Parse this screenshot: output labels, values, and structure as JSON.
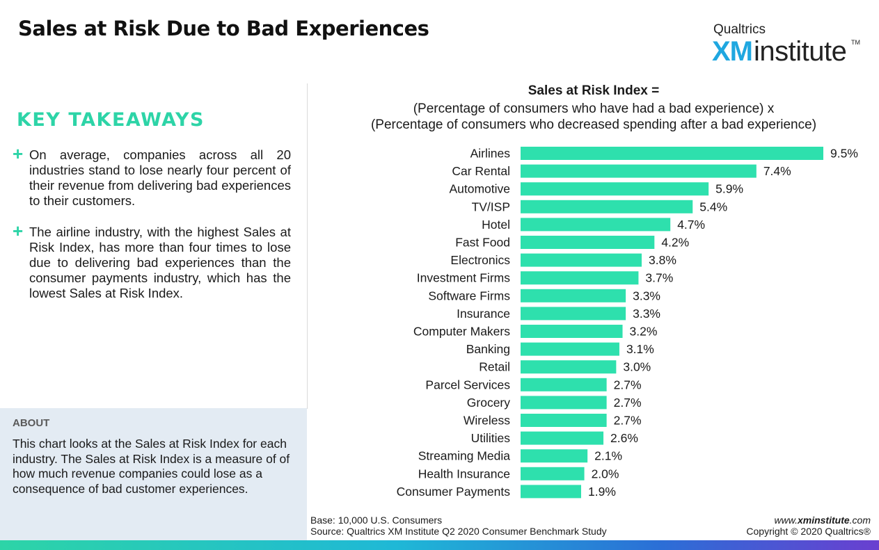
{
  "title": "Sales at Risk Due to Bad Experiences",
  "logo": {
    "top_text": "Qualtrics",
    "xm": "XM",
    "word": "institute",
    "tm": "TM"
  },
  "takeaways": {
    "heading": "KEY TAKEAWAYS",
    "items": [
      "On average, companies across all 20 industries stand to lose nearly four percent of their revenue from delivering bad experiences to their customers.",
      "The airline industry, with the highest Sales at Risk Index, has more than four times to lose due to delivering bad experiences than the consumer payments industry, which has the lowest Sales at Risk Index."
    ]
  },
  "about": {
    "title": "ABOUT",
    "text": "This chart looks at the Sales at Risk Index for each industry. The Sales at Risk Index is a measure of of how much revenue companies could lose as a consequence of bad customer experiences."
  },
  "chart_heading": {
    "title": "Sales at Risk Index =",
    "line1": "(Percentage of consumers who have had a bad experience) x",
    "line2": "(Percentage of consumers who decreased spending after a bad experience)"
  },
  "chart_data": {
    "type": "bar",
    "orientation": "horizontal",
    "title": "Sales at Risk Index =",
    "categories": [
      "Airlines",
      "Car Rental",
      "Automotive",
      "TV/ISP",
      "Hotel",
      "Fast Food",
      "Electronics",
      "Investment Firms",
      "Software Firms",
      "Insurance",
      "Computer Makers",
      "Banking",
      "Retail",
      "Parcel Services",
      "Grocery",
      "Wireless",
      "Utilities",
      "Streaming Media",
      "Health Insurance",
      "Consumer Payments"
    ],
    "values": [
      9.5,
      7.4,
      5.9,
      5.4,
      4.7,
      4.2,
      3.8,
      3.7,
      3.3,
      3.3,
      3.2,
      3.1,
      3.0,
      2.7,
      2.7,
      2.7,
      2.6,
      2.1,
      2.0,
      1.9
    ],
    "value_labels": [
      "9.5%",
      "7.4%",
      "5.9%",
      "5.4%",
      "4.7%",
      "4.2%",
      "3.8%",
      "3.7%",
      "3.3%",
      "3.3%",
      "3.2%",
      "3.1%",
      "3.0%",
      "2.7%",
      "2.7%",
      "2.7%",
      "2.6%",
      "2.1%",
      "2.0%",
      "1.9%"
    ],
    "xlim": [
      0,
      9.5
    ],
    "bar_color": "#2ee0ad",
    "grid": false,
    "legend": "none"
  },
  "footer": {
    "base": "Base: 10,000 U.S. Consumers",
    "source": "Source: Qualtrics XM Institute Q2 2020 Consumer Benchmark Study",
    "url_prefix": "www.",
    "url_bold": "xminstitute",
    "url_suffix": ".com",
    "copyright": "Copyright © 2020 Qualtrics®"
  },
  "colors": {
    "accent": "#2dd4a7",
    "about_bg": "#e3ebf3",
    "brand_blue": "#1fa7e0"
  }
}
